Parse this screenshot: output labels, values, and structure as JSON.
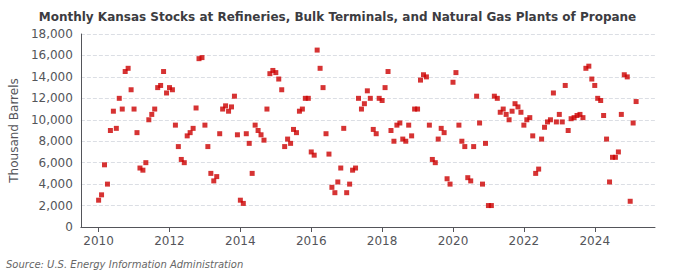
{
  "chart_data": {
    "type": "scatter",
    "title": "Monthly Kansas Stocks at Refineries, Bulk Terminals, and Natural Gas Plants of Propane",
    "ylabel": "Thousand Barrels",
    "annotation": "Source: U.S. Energy Information Administration",
    "color": "#cc0000",
    "marker": "square",
    "grid": true,
    "xlim": [
      2009.5,
      2025.7
    ],
    "xticks": [
      2010,
      2012,
      2014,
      2016,
      2018,
      2020,
      2022,
      2024
    ],
    "ylim": [
      0,
      18000
    ],
    "yticks": [
      0,
      {
        "value": 2000,
        "label": "2,000"
      },
      {
        "value": 4000,
        "label": "4,000"
      },
      {
        "value": 6000,
        "label": "6,000"
      },
      {
        "value": 8000,
        "label": "8,000"
      },
      {
        "value": 10000,
        "label": "10,000"
      },
      {
        "value": 12000,
        "label": "12,000"
      },
      {
        "value": 14000,
        "label": "14,000"
      },
      {
        "value": 16000,
        "label": "16,000"
      },
      {
        "value": 18000,
        "label": "18,000"
      }
    ],
    "x": [
      2010.0,
      2010.083,
      2010.167,
      2010.25,
      2010.333,
      2010.417,
      2010.5,
      2010.583,
      2010.667,
      2010.75,
      2010.833,
      2010.917,
      2011.0,
      2011.083,
      2011.167,
      2011.25,
      2011.333,
      2011.417,
      2011.5,
      2011.583,
      2011.667,
      2011.75,
      2011.833,
      2011.917,
      2012.0,
      2012.083,
      2012.167,
      2012.25,
      2012.333,
      2012.417,
      2012.5,
      2012.583,
      2012.667,
      2012.75,
      2012.833,
      2012.917,
      2013.0,
      2013.083,
      2013.167,
      2013.25,
      2013.333,
      2013.417,
      2013.5,
      2013.583,
      2013.667,
      2013.75,
      2013.833,
      2013.917,
      2014.0,
      2014.083,
      2014.167,
      2014.25,
      2014.333,
      2014.417,
      2014.5,
      2014.583,
      2014.667,
      2014.75,
      2014.833,
      2014.917,
      2015.0,
      2015.083,
      2015.167,
      2015.25,
      2015.333,
      2015.417,
      2015.5,
      2015.583,
      2015.667,
      2015.75,
      2015.833,
      2015.917,
      2016.0,
      2016.083,
      2016.167,
      2016.25,
      2016.333,
      2016.417,
      2016.5,
      2016.583,
      2016.667,
      2016.75,
      2016.833,
      2016.917,
      2017.0,
      2017.083,
      2017.167,
      2017.25,
      2017.333,
      2017.417,
      2017.5,
      2017.583,
      2017.667,
      2017.75,
      2017.833,
      2017.917,
      2018.0,
      2018.083,
      2018.167,
      2018.25,
      2018.333,
      2018.417,
      2018.5,
      2018.583,
      2018.667,
      2018.75,
      2018.833,
      2018.917,
      2019.0,
      2019.083,
      2019.167,
      2019.25,
      2019.333,
      2019.417,
      2019.5,
      2019.583,
      2019.667,
      2019.75,
      2019.833,
      2019.917,
      2020.0,
      2020.083,
      2020.167,
      2020.25,
      2020.333,
      2020.417,
      2020.5,
      2020.583,
      2020.667,
      2020.75,
      2020.833,
      2020.917,
      2021.0,
      2021.083,
      2021.167,
      2021.25,
      2021.333,
      2021.417,
      2021.5,
      2021.583,
      2021.667,
      2021.75,
      2021.833,
      2021.917,
      2022.0,
      2022.083,
      2022.167,
      2022.25,
      2022.333,
      2022.417,
      2022.5,
      2022.583,
      2022.667,
      2022.75,
      2022.833,
      2022.917,
      2023.0,
      2023.083,
      2023.167,
      2023.25,
      2023.333,
      2023.417,
      2023.5,
      2023.583,
      2023.667,
      2023.75,
      2023.833,
      2023.917,
      2024.0,
      2024.083,
      2024.167,
      2024.25,
      2024.333,
      2024.417,
      2024.5,
      2024.583,
      2024.667,
      2024.75,
      2024.833,
      2024.917,
      2025.0,
      2025.083,
      2025.167
    ],
    "values": [
      2500,
      3000,
      5800,
      4000,
      9000,
      10800,
      9200,
      12000,
      11000,
      14500,
      14800,
      12800,
      11000,
      8800,
      5500,
      5300,
      6000,
      10000,
      10500,
      11000,
      13000,
      13200,
      14500,
      12500,
      13000,
      12800,
      9500,
      7500,
      6300,
      6000,
      8500,
      8800,
      9200,
      11100,
      15700,
      15800,
      9500,
      7500,
      5000,
      4300,
      4700,
      8700,
      11000,
      11300,
      10800,
      11200,
      12200,
      8600,
      2500,
      2200,
      8700,
      7800,
      5000,
      9500,
      9000,
      8600,
      8100,
      11000,
      14300,
      14600,
      14400,
      13800,
      12800,
      7500,
      8200,
      7800,
      9100,
      8800,
      10800,
      11000,
      12000,
      12000,
      7000,
      6700,
      16500,
      14800,
      13000,
      8700,
      6800,
      3700,
      3200,
      4200,
      5500,
      9200,
      3200,
      4000,
      5300,
      5500,
      12000,
      11000,
      11500,
      12700,
      12000,
      9100,
      8700,
      12000,
      11800,
      13000,
      14500,
      9000,
      8000,
      9500,
      9700,
      8200,
      8000,
      9500,
      8500,
      11000,
      11000,
      13700,
      14200,
      14000,
      9500,
      6300,
      6000,
      8200,
      9200,
      8800,
      4500,
      4000,
      13500,
      14400,
      9500,
      8000,
      7500,
      4600,
      4300,
      7500,
      12200,
      9700,
      4000,
      7800,
      2000,
      2000,
      12200,
      12000,
      10700,
      11000,
      10500,
      10000,
      10800,
      11500,
      11200,
      10700,
      9500,
      10000,
      10200,
      8500,
      5000,
      5400,
      8200,
      9300,
      9800,
      10000,
      12500,
      9800,
      10500,
      9800,
      13200,
      9000,
      10100,
      10200,
      10400,
      10500,
      10200,
      14800,
      15000,
      13800,
      13200,
      12000,
      11800,
      10400,
      8200,
      4200,
      6500,
      6500,
      7000,
      10500,
      14200,
      14000,
      2400,
      9700,
      11700
    ]
  }
}
